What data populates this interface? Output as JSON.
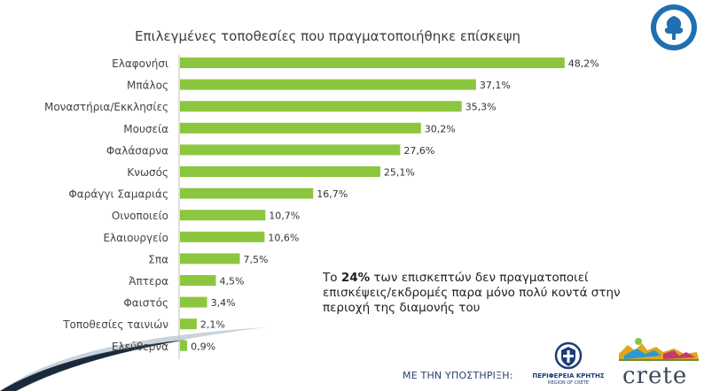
{
  "chart_data": {
    "type": "bar",
    "orientation": "horizontal",
    "title": "Επιλεγμένες τοποθεσίες που πραγματοποιήθηκε επίσκεψη",
    "categories": [
      "Ελαφονήσι",
      "Μπάλος",
      "Μοναστήρια/Εκκλησίες",
      "Μουσεία",
      "Φαλάσαρνα",
      "Κνωσός",
      "Φαράγγι Σαμαριάς",
      "Οινοποιείο",
      "Ελαιουργείο",
      "Σπα",
      "Άπτερα",
      "Φαιστός",
      "Τοποθεσίες ταινιών",
      "Ελεύθερνα"
    ],
    "values": [
      48.2,
      37.1,
      35.3,
      30.2,
      27.6,
      25.1,
      16.7,
      10.7,
      10.6,
      7.5,
      4.5,
      3.4,
      2.1,
      0.9
    ],
    "value_labels": [
      "48,2%",
      "37,1%",
      "35,3%",
      "30,2%",
      "27,6%",
      "25,1%",
      "16,7%",
      "10,7%",
      "10,6%",
      "7,5%",
      "4,5%",
      "3,4%",
      "2,1%",
      "0,9%"
    ],
    "xlim": [
      0,
      50
    ],
    "grid": false,
    "legend": "none",
    "bar_color": "#8cc63f"
  },
  "note": {
    "prefix": "Το ",
    "highlight": "24%",
    "text": " των επισκεπτών δεν πραγματοποιεί επισκέψεις/εκδρομές παρα μόνο πολύ κοντά στην περιοχή της διαμονής του"
  },
  "footer": {
    "support_label": "ΜΕ ΤΗΝ ΥΠΟΣΤΗΡΙΞΗ:",
    "region_name": "ΠΕΡΙΦΕΡΕΙΑ ΚΡΗΤΗΣ",
    "region_sub": "REGION OF CRETE",
    "brand_word": "crete"
  },
  "colors": {
    "emblem_blue": "#1f6fb2",
    "swoosh_dark": "#1b2a3a",
    "swoosh_light": "#c9d3db"
  }
}
